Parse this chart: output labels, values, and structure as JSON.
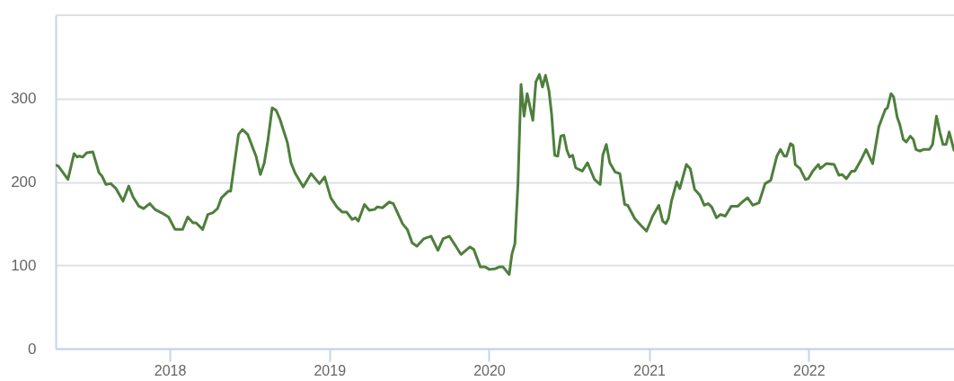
{
  "chart_data": {
    "type": "line",
    "x": [
      "2017-04-16",
      "2017-04-21",
      "2017-05-13",
      "2017-05-27",
      "2017-06-03",
      "2017-06-08",
      "2017-06-16",
      "2017-06-25",
      "2017-07-09",
      "2017-07-23",
      "2017-07-30",
      "2017-08-08",
      "2017-08-19",
      "2017-08-31",
      "2017-09-16",
      "2017-09-29",
      "2017-10-09",
      "2017-10-22",
      "2017-11-02",
      "2017-11-16",
      "2017-11-28",
      "2017-12-13",
      "2017-12-29",
      "2018-01-13",
      "2018-01-30",
      "2018-02-11",
      "2018-02-23",
      "2018-03-02",
      "2018-03-17",
      "2018-03-29",
      "2018-04-09",
      "2018-04-20",
      "2018-04-29",
      "2018-05-15",
      "2018-05-20",
      "2018-06-07",
      "2018-06-16",
      "2018-06-28",
      "2018-07-17",
      "2018-07-27",
      "2018-08-05",
      "2018-08-13",
      "2018-08-23",
      "2018-09-01",
      "2018-09-10",
      "2018-09-16",
      "2018-09-27",
      "2018-10-05",
      "2018-10-14",
      "2018-11-02",
      "2018-11-20",
      "2018-12-09",
      "2018-12-21",
      "2019-01-04",
      "2019-01-18",
      "2019-01-30",
      "2019-02-09",
      "2019-02-22",
      "2019-03-01",
      "2019-03-08",
      "2019-03-22",
      "2019-04-02",
      "2019-04-14",
      "2019-04-20",
      "2019-05-02",
      "2019-05-18",
      "2019-05-27",
      "2019-06-17",
      "2019-06-28",
      "2019-07-09",
      "2019-07-20",
      "2019-08-05",
      "2019-08-21",
      "2019-09-06",
      "2019-09-18",
      "2019-10-02",
      "2019-10-29",
      "2019-11-18",
      "2019-11-27",
      "2019-12-12",
      "2019-12-23",
      "2020-01-02",
      "2020-01-16",
      "2020-01-24",
      "2020-02-02",
      "2020-02-16",
      "2020-02-22",
      "2020-02-29",
      "2020-03-07",
      "2020-03-14",
      "2020-03-21",
      "2020-03-28",
      "2020-04-10",
      "2020-04-17",
      "2020-04-25",
      "2020-05-02",
      "2020-05-09",
      "2020-05-17",
      "2020-05-23",
      "2020-05-30",
      "2020-06-06",
      "2020-06-13",
      "2020-06-20",
      "2020-06-27",
      "2020-07-03",
      "2020-07-10",
      "2020-07-17",
      "2020-08-01",
      "2020-08-13",
      "2020-08-29",
      "2020-09-11",
      "2020-09-17",
      "2020-09-25",
      "2020-10-03",
      "2020-10-15",
      "2020-10-26",
      "2020-11-06",
      "2020-11-13",
      "2020-11-29",
      "2020-12-13",
      "2020-12-26",
      "2021-01-09",
      "2021-01-23",
      "2021-02-01",
      "2021-02-08",
      "2021-02-14",
      "2021-02-21",
      "2021-03-05",
      "2021-03-12",
      "2021-03-27",
      "2021-04-05",
      "2021-04-15",
      "2021-04-27",
      "2021-05-07",
      "2021-05-16",
      "2021-05-24",
      "2021-06-04",
      "2021-06-13",
      "2021-06-24",
      "2021-07-08",
      "2021-07-23",
      "2021-08-02",
      "2021-08-14",
      "2021-08-26",
      "2021-09-09",
      "2021-09-23",
      "2021-10-06",
      "2021-10-20",
      "2021-10-28",
      "2021-11-06",
      "2021-11-11",
      "2021-11-20",
      "2021-11-26",
      "2021-12-01",
      "2021-12-12",
      "2021-12-24",
      "2021-12-31",
      "2022-01-10",
      "2022-01-23",
      "2022-01-27",
      "2022-02-10",
      "2022-02-28",
      "2022-03-11",
      "2022-03-18",
      "2022-03-28",
      "2022-04-09",
      "2022-04-16",
      "2022-05-01",
      "2022-05-12",
      "2022-05-27",
      "2022-06-10",
      "2022-06-25",
      "2022-06-30",
      "2022-07-08",
      "2022-07-14",
      "2022-07-22",
      "2022-07-28",
      "2022-08-05",
      "2022-08-12",
      "2022-08-21",
      "2022-08-28",
      "2022-09-03",
      "2022-09-12",
      "2022-09-20",
      "2022-10-04",
      "2022-10-11",
      "2022-10-20",
      "2022-10-28",
      "2022-11-04",
      "2022-11-11",
      "2022-11-18",
      "2022-11-29"
    ],
    "series": [
      {
        "color": "#4e7f3c",
        "values": [
          220,
          219,
          203,
          234,
          230,
          231,
          230,
          235,
          236,
          211,
          207,
          197,
          198,
          192,
          177,
          195,
          182,
          171,
          168,
          174,
          167,
          163,
          158,
          143,
          143,
          158,
          151,
          151,
          143,
          161,
          163,
          168,
          181,
          189,
          189,
          257,
          263,
          257,
          231,
          209,
          223,
          249,
          289,
          286,
          275,
          265,
          247,
          223,
          211,
          194,
          210,
          198,
          206,
          181,
          170,
          164,
          164,
          155,
          157,
          153,
          173,
          166,
          167,
          170,
          169,
          176,
          174,
          150,
          143,
          127,
          123,
          132,
          135,
          118,
          132,
          135,
          113,
          122,
          119,
          98,
          98,
          95,
          96,
          98,
          98,
          89,
          113,
          126,
          198,
          317,
          279,
          306,
          274,
          320,
          329,
          314,
          328,
          309,
          281,
          232,
          231,
          255,
          256,
          238,
          230,
          232,
          217,
          213,
          223,
          203,
          197,
          232,
          245,
          223,
          212,
          210,
          173,
          172,
          156,
          148,
          141,
          159,
          172,
          153,
          150,
          156,
          177,
          200,
          192,
          221,
          216,
          191,
          184,
          172,
          174,
          170,
          157,
          161,
          159,
          171,
          171,
          176,
          181,
          172,
          175,
          198,
          202,
          231,
          239,
          231,
          231,
          246,
          244,
          221,
          216,
          203,
          204,
          213,
          221,
          216,
          222,
          221,
          208,
          209,
          204,
          213,
          213,
          227,
          239,
          222,
          266,
          287,
          289,
          306,
          302,
          278,
          269,
          251,
          248,
          255,
          251,
          239,
          237,
          239,
          239,
          245,
          279,
          259,
          245,
          245,
          260,
          238
        ]
      }
    ],
    "xlim": [
      "2017-04-15",
      "2022-11-29"
    ],
    "xticks": [
      "2018",
      "2019",
      "2020",
      "2021",
      "2022"
    ],
    "ylim": [
      0,
      400
    ],
    "yticks": [
      0,
      100,
      200,
      300
    ],
    "grid": "y",
    "marker": "none",
    "line_style": "solid"
  }
}
